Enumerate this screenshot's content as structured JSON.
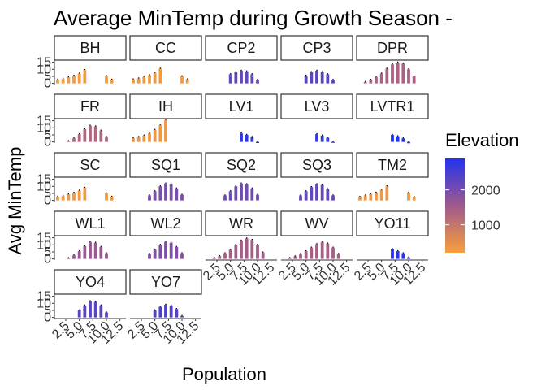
{
  "chart_data": {
    "type": "bar",
    "title": "Average MinTemp during Growth Season - ",
    "xlabel": "Population",
    "ylabel": "Avg MinTemp",
    "x_tick_labels": [
      "2.5",
      "5.0",
      "7.5",
      "10.0",
      "12.5"
    ],
    "x_tick_values": [
      2.5,
      5.0,
      7.5,
      10.0,
      12.5
    ],
    "y_tick_labels": [
      "0",
      "5",
      "10",
      "15"
    ],
    "y_tick_values": [
      0,
      5,
      10,
      15
    ],
    "xlim": [
      0.4,
      13.6
    ],
    "ylim": [
      -0.8,
      16.5
    ],
    "grid": false,
    "legend": {
      "title": "Elevation",
      "position": "right",
      "labels": [
        "2000",
        "1000"
      ],
      "label_values": [
        2000,
        1000
      ],
      "range": [
        200,
        2900
      ],
      "color_low": "#f5a03c",
      "color_mid": "#a05a8c",
      "color_high": "#2233ee"
    },
    "panels": [
      {
        "label": "BH",
        "elevation": 250,
        "months": [
          1,
          2,
          3,
          4,
          5,
          6,
          10,
          11
        ],
        "values": [
          2.5,
          3.2,
          4.3,
          5.4,
          7.0,
          9.5,
          5.2,
          2.6
        ]
      },
      {
        "label": "CC",
        "elevation": 300,
        "months": [
          1,
          2,
          3,
          4,
          5,
          6,
          10,
          11
        ],
        "values": [
          2.8,
          3.5,
          4.6,
          5.8,
          7.5,
          10.5,
          5.0,
          2.8
        ]
      },
      {
        "label": "CP2",
        "elevation": 2200,
        "months": [
          5,
          6,
          7,
          8,
          9,
          10
        ],
        "values": [
          6.5,
          8.0,
          9.0,
          8.5,
          6.5,
          2.5
        ]
      },
      {
        "label": "CP3",
        "elevation": 2300,
        "months": [
          5,
          6,
          7,
          8,
          9,
          10
        ],
        "values": [
          5.5,
          8.0,
          9.0,
          8.0,
          6.5,
          2.5
        ]
      },
      {
        "label": "DPR",
        "elevation": 1400,
        "months": [
          2,
          3,
          4,
          5,
          6,
          7,
          8,
          9,
          10,
          11
        ],
        "values": [
          1.0,
          2.5,
          4.5,
          7.0,
          10.5,
          13.5,
          14.8,
          14.0,
          10.0,
          5.0
        ]
      },
      {
        "label": "FR",
        "elevation": 1300,
        "months": [
          3,
          4,
          5,
          6,
          7,
          8,
          9,
          10
        ],
        "values": [
          0.5,
          2.5,
          5.5,
          9.0,
          11.5,
          11.0,
          8.0,
          3.5
        ]
      },
      {
        "label": "IH",
        "elevation": 350,
        "months": [
          1,
          2,
          3,
          4,
          5,
          6,
          7
        ],
        "values": [
          2.5,
          3.5,
          4.5,
          6.0,
          8.5,
          12.0,
          15.5
        ]
      },
      {
        "label": "LV1",
        "elevation": 2800,
        "months": [
          7,
          8,
          9,
          10
        ],
        "values": [
          6.0,
          5.0,
          3.5,
          -0.8
        ]
      },
      {
        "label": "LV3",
        "elevation": 2700,
        "months": [
          7,
          8,
          9,
          10
        ],
        "values": [
          5.5,
          4.5,
          3.0,
          -0.7
        ]
      },
      {
        "label": "LVTR1",
        "elevation": 2900,
        "months": [
          7,
          8,
          9,
          10
        ],
        "values": [
          5.0,
          4.0,
          2.5,
          -1.0
        ]
      },
      {
        "label": "SC",
        "elevation": 300,
        "months": [
          1,
          2,
          3,
          4,
          5,
          6,
          10,
          11
        ],
        "values": [
          2.5,
          3.2,
          4.3,
          5.4,
          7.0,
          9.0,
          5.0,
          2.6
        ]
      },
      {
        "label": "SQ1",
        "elevation": 1950,
        "months": [
          4,
          5,
          6,
          7,
          8,
          9,
          10
        ],
        "values": [
          3.5,
          6.5,
          10.0,
          12.0,
          11.5,
          8.5,
          4.0
        ]
      },
      {
        "label": "SQ2",
        "elevation": 2050,
        "months": [
          4,
          5,
          6,
          7,
          8,
          9,
          10
        ],
        "values": [
          3.5,
          6.5,
          10.0,
          12.0,
          11.5,
          8.5,
          4.0
        ]
      },
      {
        "label": "SQ3",
        "elevation": 2200,
        "months": [
          4,
          5,
          6,
          7,
          8,
          9,
          10
        ],
        "values": [
          3.5,
          6.5,
          9.5,
          11.5,
          11.0,
          8.0,
          3.5
        ]
      },
      {
        "label": "TM2",
        "elevation": 350,
        "months": [
          1,
          2,
          3,
          4,
          5,
          6,
          10,
          11
        ],
        "values": [
          2.5,
          3.5,
          4.5,
          5.5,
          7.5,
          10.0,
          5.5,
          2.5
        ]
      },
      {
        "label": "WL1",
        "elevation": 1600,
        "months": [
          3,
          4,
          5,
          6,
          7,
          8,
          9,
          10
        ],
        "values": [
          0.5,
          2.5,
          5.5,
          9.0,
          12.0,
          11.5,
          8.5,
          4.0
        ]
      },
      {
        "label": "WL2",
        "elevation": 1900,
        "months": [
          4,
          5,
          6,
          7,
          8,
          9,
          10
        ],
        "values": [
          3.5,
          6.5,
          10.0,
          12.0,
          11.5,
          8.5,
          4.0
        ]
      },
      {
        "label": "WR",
        "elevation": 1500,
        "months": [
          2,
          3,
          4,
          5,
          6,
          7,
          8,
          9,
          10,
          11
        ],
        "values": [
          0.8,
          2.0,
          4.0,
          6.5,
          10.0,
          13.0,
          14.5,
          13.5,
          10.0,
          4.5
        ]
      },
      {
        "label": "WV",
        "elevation": 1450,
        "months": [
          2,
          3,
          4,
          5,
          6,
          7,
          8,
          9,
          10,
          11
        ],
        "values": [
          0.6,
          1.8,
          3.5,
          5.5,
          8.0,
          10.5,
          12.0,
          11.0,
          8.0,
          3.5
        ]
      },
      {
        "label": "YO11",
        "elevation": 2850,
        "months": [
          7,
          8,
          9,
          10
        ],
        "values": [
          7.0,
          5.5,
          4.0,
          1.0
        ]
      },
      {
        "label": "YO4",
        "elevation": 2300,
        "months": [
          5,
          6,
          7,
          8,
          9,
          10
        ],
        "values": [
          5.0,
          8.5,
          11.5,
          11.0,
          8.5,
          3.5
        ]
      },
      {
        "label": "YO7",
        "elevation": 2400,
        "months": [
          5,
          6,
          7,
          8,
          9,
          10
        ],
        "values": [
          5.0,
          7.5,
          9.0,
          8.5,
          6.0,
          1.0
        ]
      }
    ]
  }
}
